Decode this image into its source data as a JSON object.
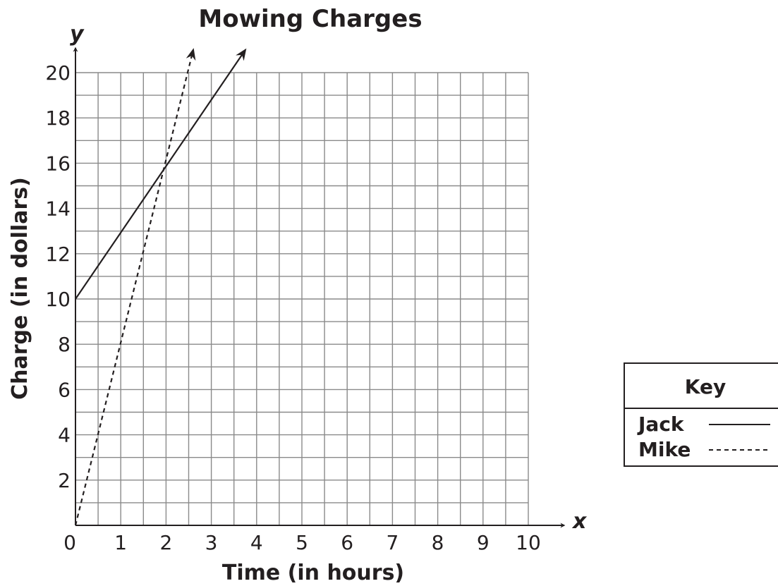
{
  "chart_data": {
    "type": "line",
    "title": "Mowing Charges",
    "xlabel": "Time (in hours)",
    "ylabel": "Charge (in dollars)",
    "x_var": "x",
    "y_var": "y",
    "xlim": [
      0,
      10
    ],
    "ylim": [
      0,
      20
    ],
    "x_ticks": [
      0,
      1,
      2,
      3,
      4,
      5,
      6,
      7,
      8,
      9,
      10
    ],
    "y_ticks": [
      2,
      4,
      6,
      8,
      10,
      12,
      14,
      16,
      18,
      20
    ],
    "grid": true,
    "grid_step_x": 0.5,
    "grid_step_y": 1,
    "legend": {
      "title": "Key",
      "placement": "right"
    },
    "series": [
      {
        "name": "Jack",
        "style": "solid",
        "points": [
          [
            0,
            10
          ],
          [
            3.75,
            21
          ]
        ]
      },
      {
        "name": "Mike",
        "style": "dashed",
        "points": [
          [
            0,
            0
          ],
          [
            2.6,
            21
          ]
        ]
      }
    ]
  },
  "colors": {
    "ink": "#231f20",
    "grid": "#8a8a8a"
  }
}
